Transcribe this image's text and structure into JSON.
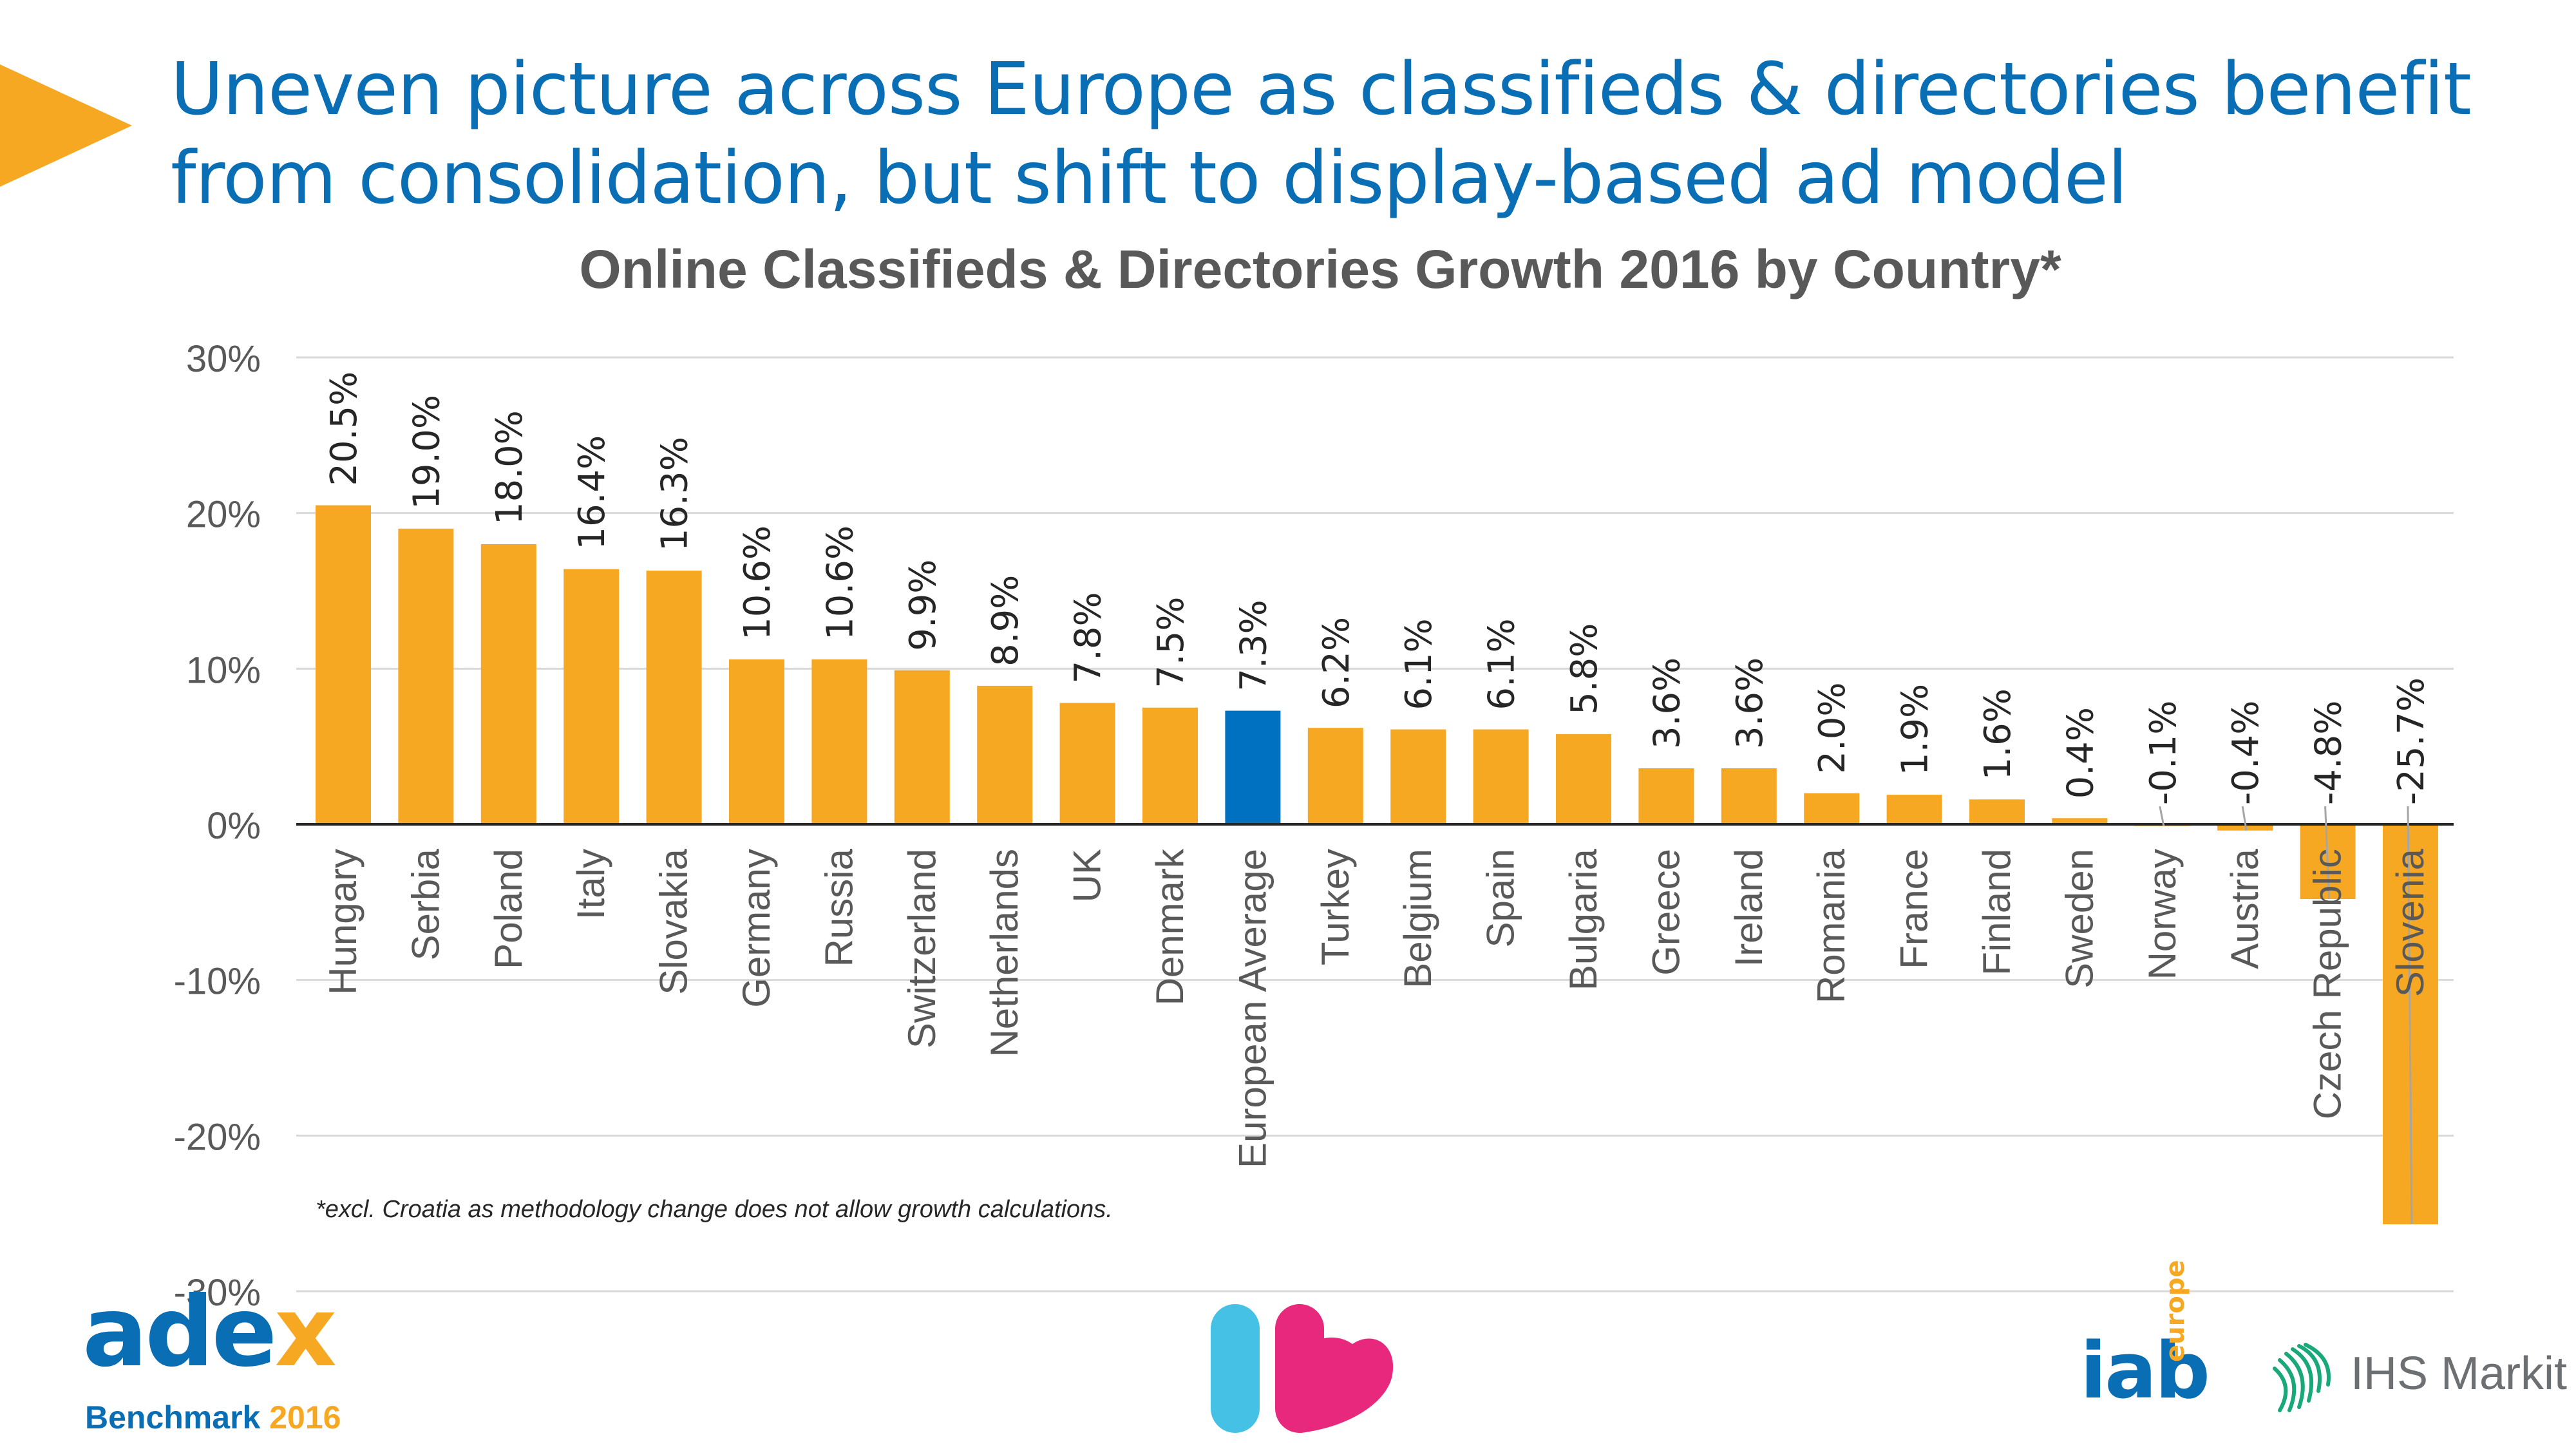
{
  "headline": "Uneven picture across Europe as classifieds & directories benefit from consolidation, but shift to display-based ad model",
  "footnote": "*excl. Croatia as methodology change does not allow growth calculations.",
  "colors": {
    "accent": "#F7A823",
    "highlight": "#0070C0",
    "headline": "#0A6EB4",
    "axis_text": "#595959",
    "grid": "#D9D9D9"
  },
  "logos": {
    "adex": {
      "word_main": "ade",
      "word_accent": "x",
      "sub_main": "Benchmark",
      "sub_year": "2016"
    },
    "iab": {
      "word": "iab",
      "region": "europe"
    },
    "ihs": {
      "word": "IHS Markit"
    }
  },
  "chart_data": {
    "type": "bar",
    "title": "Online Classifieds & Directories Growth 2016 by Country*",
    "xlabel": "",
    "ylabel": "",
    "ylim": [
      -30,
      30
    ],
    "yticks": [
      30,
      20,
      10,
      0,
      -10,
      -20,
      -30
    ],
    "ytick_labels": [
      "30%",
      "20%",
      "10%",
      "0%",
      "-10%",
      "-20%",
      "-30%"
    ],
    "grid": true,
    "legend": "none",
    "highlight_category": "European Average",
    "categories": [
      "Hungary",
      "Serbia",
      "Poland",
      "Italy",
      "Slovakia",
      "Germany",
      "Russia",
      "Switzerland",
      "Netherlands",
      "UK",
      "Denmark",
      "European Average",
      "Turkey",
      "Belgium",
      "Spain",
      "Bulgaria",
      "Greece",
      "Ireland",
      "Romania",
      "France",
      "Finland",
      "Sweden",
      "Norway",
      "Austria",
      "Czech Republic",
      "Slovenia"
    ],
    "values": [
      20.5,
      19.0,
      18.0,
      16.4,
      16.3,
      10.6,
      10.6,
      9.9,
      8.9,
      7.8,
      7.5,
      7.3,
      6.2,
      6.1,
      6.1,
      5.8,
      3.6,
      3.6,
      2.0,
      1.9,
      1.6,
      0.4,
      -0.1,
      -0.4,
      -4.8,
      -25.7
    ],
    "data_labels": [
      "20.5%",
      "19.0%",
      "18.0%",
      "16.4%",
      "16.3%",
      "10.6%",
      "10.6%",
      "9.9%",
      "8.9%",
      "7.8%",
      "7.5%",
      "7.3%",
      "6.2%",
      "6.1%",
      "6.1%",
      "5.8%",
      "3.6%",
      "3.6%",
      "2.0%",
      "1.9%",
      "1.6%",
      "0.4%",
      "-0.1%",
      "-0.4%",
      "-4.8%",
      "-25.7%"
    ]
  }
}
